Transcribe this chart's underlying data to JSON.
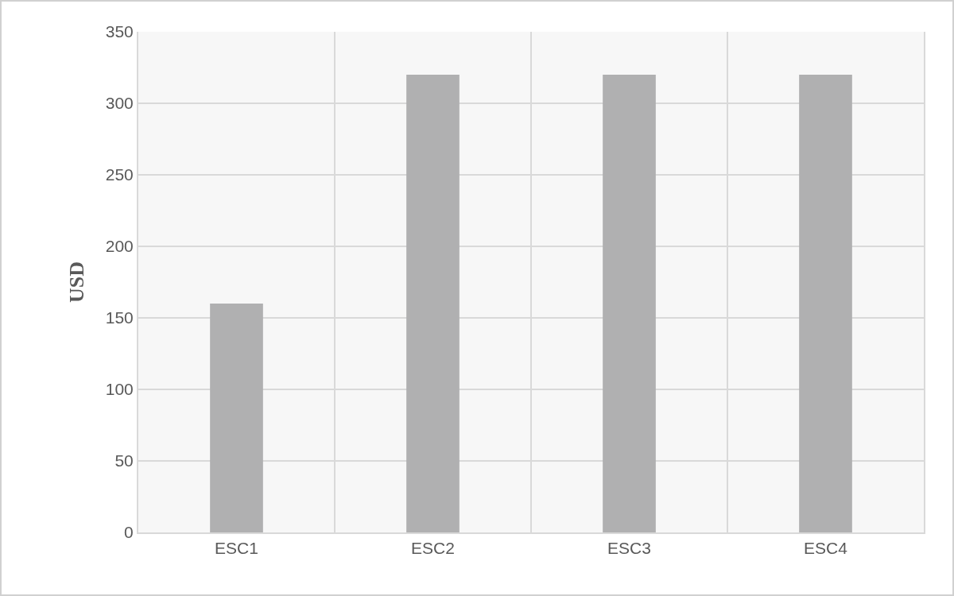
{
  "chart_data": {
    "type": "bar",
    "ylabel": "USD",
    "categories": [
      "ESC1",
      "ESC2",
      "ESC3",
      "ESC4"
    ],
    "values": [
      160,
      320,
      320,
      320
    ],
    "color": "#b0b0b1",
    "ylim": [
      0,
      350
    ],
    "yticks": [
      0,
      50,
      100,
      150,
      200,
      250,
      300,
      350
    ],
    "grid": true
  }
}
